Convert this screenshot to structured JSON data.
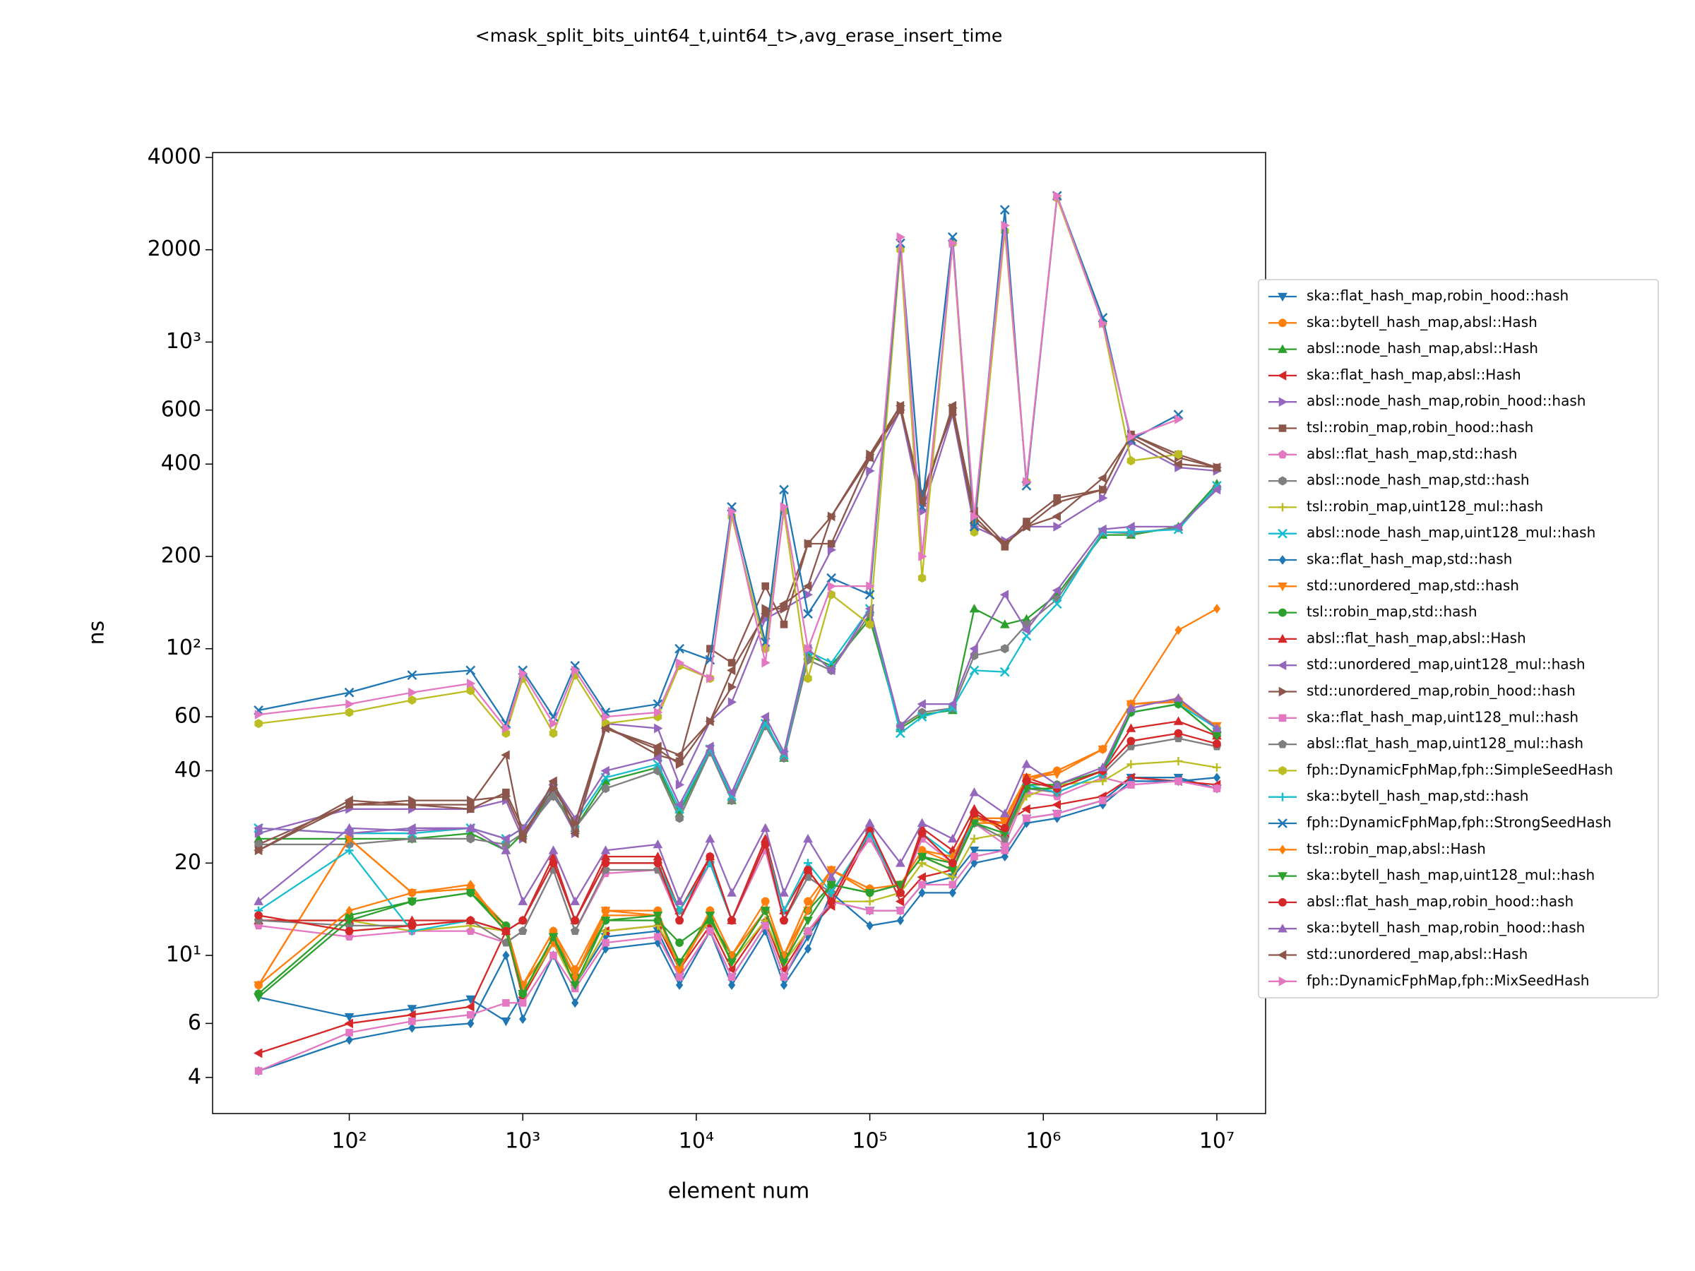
{
  "chart_data": {
    "type": "line",
    "title": "<mask_split_bits_uint64_t,uint64_t>,avg_erase_insert_time",
    "x_label": "element num",
    "y_label": "ns",
    "xscale": "log",
    "yscale": "log",
    "legend": "outside right",
    "xlim": [
      16.3,
      19100000
    ],
    "ylim": [
      3.05,
      4150
    ],
    "xticks": [
      {
        "value": 100,
        "label": "10²"
      },
      {
        "value": 1000,
        "label": "10³"
      },
      {
        "value": 10000,
        "label": "10⁴"
      },
      {
        "value": 100000,
        "label": "10⁵"
      },
      {
        "value": 1000000,
        "label": "10⁶"
      },
      {
        "value": 10000000,
        "label": "10⁷"
      }
    ],
    "yticks": [
      4,
      6,
      {
        "value": 10,
        "label": "10¹"
      },
      20,
      40,
      60,
      {
        "value": 100,
        "label": "10²"
      },
      200,
      400,
      600,
      {
        "value": 1000,
        "label": "10³"
      },
      2000,
      4000
    ],
    "x": [
      30,
      100,
      230,
      500,
      800,
      1000,
      1500,
      2000,
      3000,
      6000,
      8000,
      12000,
      16000,
      25000,
      32000,
      44000,
      60000,
      100000,
      150000,
      200000,
      300000,
      400000,
      600000,
      800000,
      1200000,
      2200000,
      3200000,
      6000000,
      10000000
    ],
    "series": [
      {
        "name": "ska::flat_hash_map,robin_hood::hash",
        "color": "#1f77b4",
        "marker": "v",
        "values": [
          7.3,
          6.3,
          6.7,
          7.2,
          6.1,
          7.5,
          11,
          8,
          11.5,
          12,
          8.5,
          12,
          8.5,
          12.5,
          8.5,
          11.5,
          15,
          14,
          14,
          17,
          18,
          22,
          22,
          28,
          29,
          32,
          38,
          38,
          35
        ]
      },
      {
        "name": "ska::bytell_hash_map,absl::Hash",
        "color": "#ff7f0e",
        "marker": "o",
        "values": [
          8,
          24,
          16,
          16.5,
          12.5,
          8,
          12,
          9,
          14,
          14,
          9,
          14,
          10,
          15,
          10,
          15,
          19,
          16.5,
          17,
          22,
          20,
          28,
          28,
          38,
          40,
          47,
          66,
          68,
          55
        ]
      },
      {
        "name": "absl::node_hash_map,absl::Hash",
        "color": "#2ca02c",
        "marker": "^",
        "values": [
          24,
          24,
          24,
          25,
          22,
          25,
          34,
          26,
          37,
          41,
          29,
          47,
          32,
          58,
          44,
          95,
          88,
          125,
          55,
          61,
          63,
          135,
          120,
          125,
          150,
          235,
          235,
          250,
          345
        ]
      },
      {
        "name": "ska::flat_hash_map,absl::Hash",
        "color": "#d62728",
        "marker": "<",
        "values": [
          4.8,
          6,
          6.4,
          6.8,
          12,
          7.3,
          11,
          8,
          12,
          12.5,
          9,
          12.5,
          9,
          13,
          9,
          12,
          14.5,
          25,
          15,
          18,
          19,
          28,
          27,
          30,
          31,
          33,
          38,
          37,
          36
        ]
      },
      {
        "name": "absl::node_hash_map,robin_hood::hash",
        "color": "#9467bd",
        "marker": ">",
        "values": [
          25,
          30,
          30,
          30,
          32,
          24,
          34,
          25,
          57,
          55,
          36,
          58,
          67,
          125,
          135,
          150,
          210,
          380,
          600,
          280,
          580,
          250,
          225,
          250,
          250,
          310,
          470,
          390,
          380
        ]
      },
      {
        "name": "tsl::robin_map,robin_hood::hash",
        "color": "#8c564b",
        "marker": "s",
        "values": [
          23,
          31,
          31,
          30,
          34,
          26,
          36,
          27,
          56,
          45,
          43,
          100,
          90,
          160,
          120,
          220,
          220,
          420,
          600,
          320,
          590,
          270,
          215,
          260,
          310,
          330,
          500,
          430,
          390
        ]
      },
      {
        "name": "absl::flat_hash_map,std::hash",
        "color": "#e377c2",
        "marker": "p",
        "values": [
          12.5,
          11.5,
          12,
          12,
          11,
          12,
          19,
          12,
          18.5,
          19,
          13,
          20,
          13,
          22,
          13,
          18,
          16,
          24,
          16,
          24,
          20,
          27,
          23,
          34,
          33,
          38,
          36,
          37,
          35
        ]
      },
      {
        "name": "absl::node_hash_map,std::hash",
        "color": "#7f7f7f",
        "marker": "h",
        "values": [
          23,
          23,
          24,
          24,
          23,
          25,
          33,
          26,
          35,
          40,
          28,
          46,
          32,
          56,
          44,
          92,
          85,
          130,
          56,
          62,
          64,
          95,
          100,
          120,
          145,
          240,
          238,
          248,
          335
        ]
      },
      {
        "name": "tsl::robin_map,uint128_mul::hash",
        "color": "#bcbd22",
        "marker": "+",
        "values": [
          13,
          13,
          12,
          12.5,
          12,
          7.5,
          11,
          8,
          12,
          12.5,
          9.5,
          13,
          9.5,
          13,
          9.5,
          12,
          15,
          15,
          16,
          20,
          18,
          24,
          25,
          33,
          36,
          37,
          42,
          43,
          41
        ]
      },
      {
        "name": "absl::node_hash_map,uint128_mul::hash",
        "color": "#17becf",
        "marker": "x",
        "values": [
          26,
          25,
          25,
          26,
          24,
          26,
          35,
          27,
          38,
          42,
          30,
          47,
          33,
          57,
          45,
          98,
          90,
          135,
          53,
          60,
          64,
          85,
          84,
          110,
          140,
          240,
          240,
          245,
          340
        ]
      },
      {
        "name": "ska::flat_hash_map,std::hash",
        "color": "#1f77b4",
        "marker": "D",
        "values": [
          4.2,
          5.3,
          5.8,
          6,
          10,
          6.2,
          10,
          7,
          10.5,
          11,
          8,
          12,
          8,
          12,
          8,
          10.5,
          16,
          12.5,
          13,
          16,
          16,
          20,
          21,
          27,
          28,
          31,
          37,
          37,
          38
        ]
      },
      {
        "name": "std::unordered_map,std::hash",
        "color": "#ff7f0e",
        "marker": "v",
        "values": [
          8,
          24,
          16,
          16.5,
          12,
          8,
          11,
          8.5,
          14,
          13.5,
          9,
          13.5,
          9.5,
          14,
          9.5,
          14,
          19,
          16,
          17,
          21,
          19,
          27,
          27,
          38,
          39,
          47,
          66,
          67,
          56
        ]
      },
      {
        "name": "tsl::robin_map,std::hash",
        "color": "#2ca02c",
        "marker": "o",
        "values": [
          7.5,
          13.5,
          15,
          16,
          12.5,
          7.5,
          11.5,
          8.5,
          13,
          13,
          11,
          13,
          10,
          14,
          10,
          14,
          17,
          16,
          17,
          21,
          20,
          28,
          26,
          36,
          36,
          40,
          62,
          66,
          52
        ]
      },
      {
        "name": "absl::flat_hash_map,absl::Hash",
        "color": "#d62728",
        "marker": "^",
        "values": [
          13,
          13,
          13,
          13,
          12,
          13,
          21,
          13,
          21,
          21,
          14,
          21,
          13,
          24,
          14,
          19,
          15,
          26,
          16,
          26,
          22,
          30,
          25,
          38,
          35,
          40,
          55,
          58,
          52
        ]
      },
      {
        "name": "std::unordered_map,uint128_mul::hash",
        "color": "#9467bd",
        "marker": "<",
        "values": [
          26,
          25,
          26,
          26,
          24,
          26,
          36,
          28,
          40,
          44,
          31,
          48,
          34,
          60,
          46,
          100,
          85,
          135,
          56,
          66,
          66,
          100,
          150,
          115,
          155,
          245,
          250,
          250,
          330
        ]
      },
      {
        "name": "std::unordered_map,robin_hood::hash",
        "color": "#8c564b",
        "marker": ">",
        "values": [
          22,
          31,
          32,
          32,
          33,
          25,
          35,
          27,
          55,
          47,
          42,
          58,
          75,
          135,
          135,
          220,
          270,
          430,
          620,
          310,
          610,
          260,
          220,
          250,
          300,
          330,
          500,
          420,
          390
        ]
      },
      {
        "name": "ska::flat_hash_map,uint128_mul::hash",
        "color": "#e377c2",
        "marker": "s",
        "values": [
          4.2,
          5.6,
          6.1,
          6.4,
          7,
          7,
          10,
          7.8,
          11,
          11.5,
          8.5,
          12,
          8.5,
          12.5,
          8.5,
          12,
          15,
          14,
          14,
          17,
          17,
          21,
          22,
          28,
          29,
          32,
          36,
          37,
          35
        ]
      },
      {
        "name": "absl::flat_hash_map,uint128_mul::hash",
        "color": "#7f7f7f",
        "marker": "p",
        "values": [
          13,
          12.5,
          12.5,
          13,
          11,
          12,
          19,
          12,
          19,
          19,
          14,
          20,
          13,
          23,
          13,
          18,
          16,
          25,
          16,
          25,
          20,
          27,
          24,
          35,
          34,
          39,
          48,
          51,
          48
        ]
      },
      {
        "name": "fph::DynamicFphMap,fph::SimpleSeedHash",
        "color": "#bcbd22",
        "marker": "h",
        "values": [
          57,
          62,
          68,
          73,
          53,
          80,
          53,
          82,
          57,
          60,
          88,
          80,
          270,
          100,
          280,
          80,
          150,
          120,
          2000,
          170,
          2100,
          240,
          2300,
          350,
          2950,
          1150,
          410,
          430,
          null
        ]
      },
      {
        "name": "ska::bytell_hash_map,std::hash",
        "color": "#17becf",
        "marker": "+",
        "values": [
          14,
          22,
          12,
          13,
          12,
          13,
          20,
          13,
          20,
          20,
          14,
          20,
          13,
          23,
          14,
          20,
          16,
          25,
          16,
          25,
          21,
          27,
          25,
          36,
          34,
          39,
          62,
          66,
          55
        ]
      },
      {
        "name": "fph::DynamicFphMap,fph::StrongSeedHash",
        "color": "#1f77b4",
        "marker": "x",
        "values": [
          63,
          72,
          82,
          85,
          57,
          85,
          60,
          88,
          62,
          66,
          100,
          92,
          290,
          105,
          330,
          130,
          170,
          150,
          2100,
          290,
          2200,
          250,
          2700,
          340,
          3000,
          1200,
          480,
          580,
          null
        ]
      },
      {
        "name": "tsl::robin_map,absl::Hash",
        "color": "#ff7f0e",
        "marker": "D",
        "values": [
          8,
          14,
          16,
          17,
          12,
          8,
          12,
          8.5,
          13.5,
          13.5,
          9,
          14,
          10,
          14,
          10,
          14,
          19,
          16.5,
          17,
          22,
          21,
          28,
          26,
          37,
          40,
          47,
          66,
          115,
          135
        ]
      },
      {
        "name": "ska::bytell_hash_map,uint128_mul::hash",
        "color": "#2ca02c",
        "marker": "v",
        "values": [
          7.3,
          13,
          15,
          16,
          12,
          7.5,
          11.5,
          8,
          13,
          13.5,
          9.5,
          13.5,
          9.5,
          14,
          9.5,
          13,
          17,
          16,
          17,
          21,
          19,
          27,
          25,
          35,
          35,
          40,
          62,
          66,
          52
        ]
      },
      {
        "name": "absl::flat_hash_map,robin_hood::hash",
        "color": "#d62728",
        "marker": "o",
        "values": [
          13.5,
          12,
          12.5,
          13,
          12,
          13,
          20,
          13,
          20,
          20,
          13,
          21,
          13,
          23,
          13,
          19,
          15,
          26,
          16,
          25,
          20,
          29,
          26,
          37,
          35,
          40,
          50,
          53,
          49
        ]
      },
      {
        "name": "ska::bytell_hash_map,robin_hood::hash",
        "color": "#9467bd",
        "marker": "^",
        "values": [
          15,
          26,
          25.5,
          26,
          22,
          15,
          22,
          15,
          22,
          23,
          15,
          24,
          16,
          26,
          16,
          24,
          18,
          27,
          20,
          27,
          24,
          34,
          29,
          42,
          36,
          41,
          64,
          69,
          55
        ]
      },
      {
        "name": "std::unordered_map,absl::Hash",
        "color": "#8c564b",
        "marker": "<",
        "values": [
          22,
          32,
          31,
          31,
          45,
          24,
          37,
          25,
          55,
          48,
          45,
          58,
          85,
          130,
          140,
          160,
          270,
          420,
          620,
          300,
          620,
          280,
          220,
          250,
          270,
          360,
          490,
          400,
          390
        ]
      },
      {
        "name": "fph::DynamicFphMap,fph::MixSeedHash",
        "color": "#e377c2",
        "marker": ">",
        "values": [
          61,
          66,
          72,
          77,
          55,
          83,
          57,
          85,
          60,
          62,
          90,
          80,
          280,
          90,
          290,
          100,
          160,
          160,
          2200,
          200,
          2100,
          270,
          2400,
          350,
          3000,
          1150,
          490,
          560,
          null
        ]
      }
    ]
  }
}
